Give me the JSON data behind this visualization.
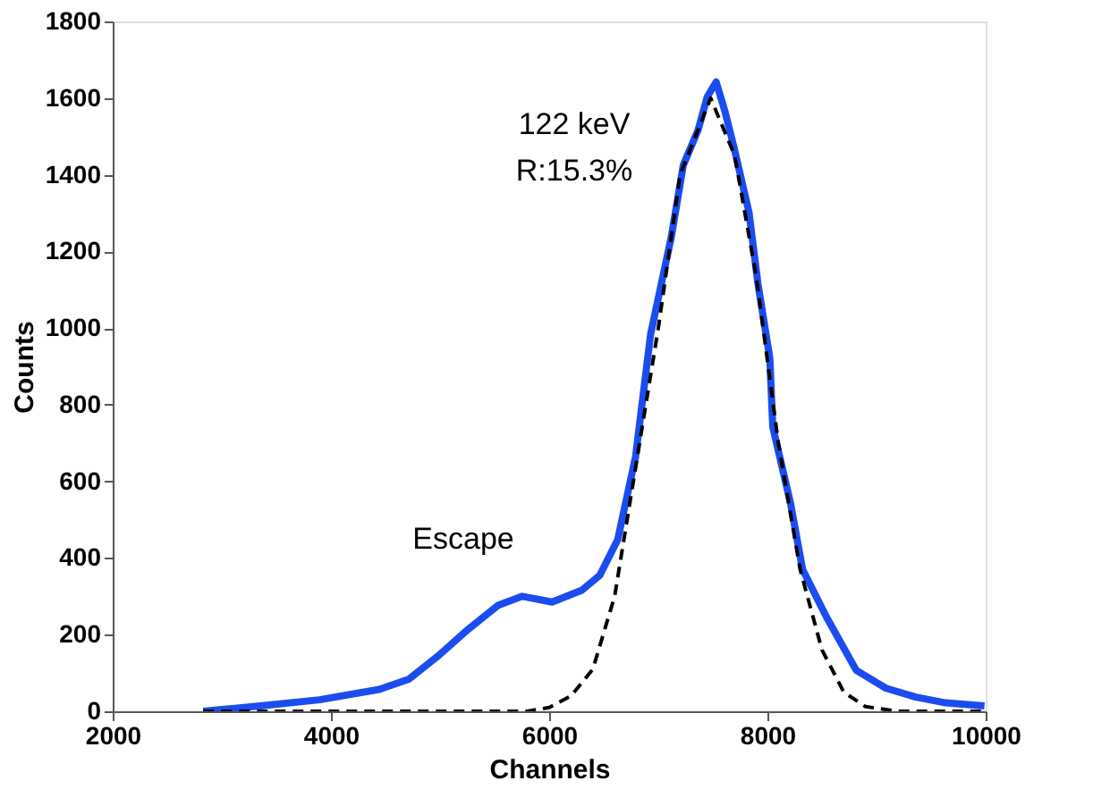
{
  "chart_data": {
    "type": "line",
    "xlabel": "Channels",
    "ylabel": "Counts",
    "xlim": [
      2000,
      10000
    ],
    "xticks": [
      2000,
      4000,
      6000,
      8000,
      10000
    ],
    "ylim": [
      0,
      1800
    ],
    "yticks": [
      0,
      200,
      400,
      600,
      800,
      1000,
      1200,
      1400,
      1600,
      1800
    ],
    "grid": false,
    "annotations": [
      "122 keV",
      "R:15.3%",
      "Escape"
    ],
    "series": [
      {
        "color": "#1a4cf0",
        "line_style": "solid",
        "x": [
          2830,
          3350,
          3896,
          4443,
          4716,
          4989,
          5262,
          5535,
          5754,
          6027,
          6300,
          6464,
          6628,
          6792,
          6929,
          7120,
          7229,
          7366,
          7448,
          7530,
          7612,
          7694,
          7831,
          7913,
          8022,
          8049,
          8213,
          8322,
          8541,
          8814,
          9087,
          9360,
          9634,
          9989
        ],
        "values": [
          0,
          14,
          30,
          57,
          84,
          146,
          215,
          277,
          300,
          285,
          316,
          355,
          448,
          665,
          983,
          1239,
          1425,
          1518,
          1603,
          1642,
          1564,
          1471,
          1302,
          1116,
          921,
          742,
          541,
          370,
          246,
          107,
          60,
          37,
          22,
          14
        ]
      },
      {
        "color": "#000000",
        "line_style": "dashed",
        "x": [
          2830,
          5800,
          6000,
          6200,
          6400,
          6600,
          6800,
          7000,
          7200,
          7480,
          7700,
          7900,
          8100,
          8300,
          8500,
          8700,
          8900,
          9200,
          10000
        ],
        "values": [
          0,
          0,
          10,
          40,
          110,
          300,
          650,
          1000,
          1400,
          1600,
          1450,
          1130,
          700,
          370,
          160,
          50,
          12,
          0,
          0
        ]
      }
    ]
  }
}
